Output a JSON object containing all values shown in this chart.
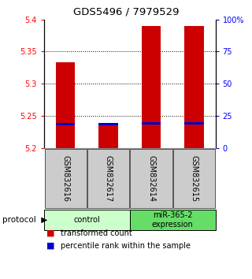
{
  "title": "GDS5496 / 7979529",
  "samples": [
    "GSM832616",
    "GSM832617",
    "GSM832614",
    "GSM832615"
  ],
  "red_bar_tops": [
    5.333,
    5.237,
    5.39,
    5.39
  ],
  "blue_bar_tops": [
    5.237,
    5.237,
    5.238,
    5.238
  ],
  "blue_bar_height": 0.004,
  "bar_bottom": 5.2,
  "ylim_left": [
    5.2,
    5.4
  ],
  "ylim_right": [
    0,
    100
  ],
  "yticks_left": [
    5.2,
    5.25,
    5.3,
    5.35,
    5.4
  ],
  "yticks_right": [
    0,
    25,
    50,
    75,
    100
  ],
  "ytick_labels_right": [
    "0",
    "25",
    "50",
    "75",
    "100%"
  ],
  "bar_color_red": "#cc0000",
  "bar_color_blue": "#0000cc",
  "bar_width": 0.45,
  "legend_red": "transformed count",
  "legend_blue": "percentile rank within the sample",
  "sample_box_color": "#cccccc",
  "sample_box_border": "#555555",
  "group_colors": [
    "#ccffcc",
    "#66dd66"
  ],
  "group_labels": [
    "control",
    "miR-365-2\nexpression"
  ]
}
